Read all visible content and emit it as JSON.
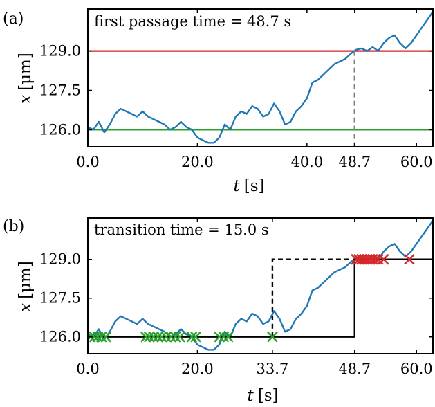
{
  "chart_data": [
    {
      "type": "line",
      "panel_label": "(a)",
      "annotation": "first passage time = 48.7 s",
      "xlabel_var": "t",
      "xlabel_unit": "[s]",
      "ylabel_var": "x",
      "ylabel_unit": "[μm]",
      "xlim": [
        0,
        63
      ],
      "ylim": [
        125.35,
        130.6
      ],
      "xticks": [
        0,
        20,
        40,
        48.7,
        60
      ],
      "xtick_labels": [
        "0.0",
        "20.0",
        "40.0",
        "48.7",
        "60.0"
      ],
      "yticks": [
        126.0,
        127.5,
        129.0
      ],
      "ytick_labels": [
        "126.0",
        "127.5",
        "129.0"
      ],
      "series": [
        {
          "color": "#1f77b4",
          "x": [
            0,
            1,
            2,
            3,
            4,
            5,
            6,
            7,
            8,
            9,
            10,
            11,
            12,
            13,
            14,
            15,
            16,
            17,
            18,
            19,
            20,
            21,
            22,
            23,
            24,
            25,
            26,
            27,
            28,
            29,
            30,
            31,
            32,
            33,
            34,
            35,
            36,
            37,
            38,
            39,
            40,
            41,
            42,
            43,
            44,
            45,
            46,
            47,
            48,
            49,
            50,
            51,
            52,
            53,
            54,
            55,
            56,
            57,
            58,
            59,
            60,
            61,
            62,
            63
          ],
          "values": [
            126.1,
            126.0,
            126.3,
            125.9,
            126.2,
            126.6,
            126.8,
            126.7,
            126.6,
            126.5,
            126.7,
            126.5,
            126.4,
            126.3,
            126.2,
            126.0,
            126.1,
            126.3,
            126.1,
            126.0,
            125.7,
            125.6,
            125.5,
            125.5,
            125.7,
            126.2,
            126.0,
            126.5,
            126.7,
            126.6,
            126.9,
            126.8,
            126.5,
            126.6,
            127.0,
            126.7,
            126.2,
            126.3,
            126.7,
            126.9,
            127.2,
            127.8,
            127.9,
            128.1,
            128.3,
            128.5,
            128.6,
            128.7,
            128.9,
            129.05,
            129.1,
            129.0,
            129.15,
            129.0,
            129.3,
            129.5,
            129.6,
            129.3,
            129.1,
            129.3,
            129.6,
            129.9,
            130.2,
            130.5
          ]
        }
      ],
      "hlines": [
        {
          "y": 129.0,
          "color": "#d62728"
        },
        {
          "y": 126.0,
          "color": "#2ca02c"
        }
      ],
      "vlines": [
        {
          "x": 48.7,
          "color": "#808080",
          "style": "dashed",
          "from": 125.35,
          "to": 129.0
        }
      ]
    },
    {
      "type": "line",
      "panel_label": "(b)",
      "annotation": "transition time = 15.0 s",
      "xlabel_var": "t",
      "xlabel_unit": "[s]",
      "ylabel_var": "x",
      "ylabel_unit": "[μm]",
      "xlim": [
        0,
        63
      ],
      "ylim": [
        125.35,
        130.6
      ],
      "xticks": [
        0,
        20,
        33.7,
        48.7,
        60
      ],
      "xtick_labels": [
        "0.0",
        "20.0",
        "33.7",
        "48.7",
        "60.0"
      ],
      "yticks": [
        126.0,
        127.5,
        129.0
      ],
      "ytick_labels": [
        "126.0",
        "127.5",
        "129.0"
      ],
      "series": [
        {
          "color": "#1f77b4",
          "x": [
            0,
            1,
            2,
            3,
            4,
            5,
            6,
            7,
            8,
            9,
            10,
            11,
            12,
            13,
            14,
            15,
            16,
            17,
            18,
            19,
            20,
            21,
            22,
            23,
            24,
            25,
            26,
            27,
            28,
            29,
            30,
            31,
            32,
            33,
            34,
            35,
            36,
            37,
            38,
            39,
            40,
            41,
            42,
            43,
            44,
            45,
            46,
            47,
            48,
            49,
            50,
            51,
            52,
            53,
            54,
            55,
            56,
            57,
            58,
            59,
            60,
            61,
            62,
            63
          ],
          "values": [
            126.1,
            126.0,
            126.3,
            125.9,
            126.2,
            126.6,
            126.8,
            126.7,
            126.6,
            126.5,
            126.7,
            126.5,
            126.4,
            126.3,
            126.2,
            126.0,
            126.1,
            126.3,
            126.1,
            126.0,
            125.7,
            125.6,
            125.5,
            125.5,
            125.7,
            126.2,
            126.0,
            126.5,
            126.7,
            126.6,
            126.9,
            126.8,
            126.5,
            126.6,
            127.0,
            126.7,
            126.2,
            126.3,
            126.7,
            126.9,
            127.2,
            127.8,
            127.9,
            128.1,
            128.3,
            128.5,
            128.6,
            128.7,
            128.9,
            129.05,
            129.1,
            129.0,
            129.15,
            129.0,
            129.3,
            129.5,
            129.6,
            129.3,
            129.1,
            129.3,
            129.6,
            129.9,
            130.2,
            130.5
          ]
        }
      ],
      "step_solid": {
        "color": "#000000",
        "x": [
          0,
          48.7,
          48.7,
          63
        ],
        "y": [
          126.0,
          126.0,
          129.0,
          129.0
        ]
      },
      "step_dashed": {
        "color": "#000000",
        "x": [
          33.7,
          33.7,
          48.7
        ],
        "y": [
          126.0,
          129.0,
          129.0
        ]
      },
      "markers_low": {
        "color": "#2ca02c",
        "x": [
          0.5,
          1.2,
          1.8,
          2.5,
          3.3,
          10.6,
          11.2,
          12.0,
          12.8,
          13.5,
          14.3,
          15.2,
          16.0,
          16.8,
          19.0,
          19.7,
          24.0,
          24.8,
          25.6,
          33.7
        ],
        "y": [
          126.0,
          126.0,
          126.0,
          126.0,
          126.0,
          126.0,
          126.0,
          126.0,
          126.0,
          126.0,
          126.0,
          126.0,
          126.0,
          126.0,
          126.0,
          126.0,
          126.0,
          126.0,
          126.0,
          126.0
        ]
      },
      "markers_high": {
        "color": "#d62728",
        "x": [
          49.0,
          49.5,
          50.0,
          50.5,
          51.0,
          51.5,
          52.0,
          52.5,
          53.0,
          54.0,
          58.7
        ],
        "y": [
          129.0,
          129.0,
          129.0,
          129.0,
          129.0,
          129.0,
          129.0,
          129.0,
          129.0,
          129.0,
          129.0
        ]
      }
    }
  ]
}
